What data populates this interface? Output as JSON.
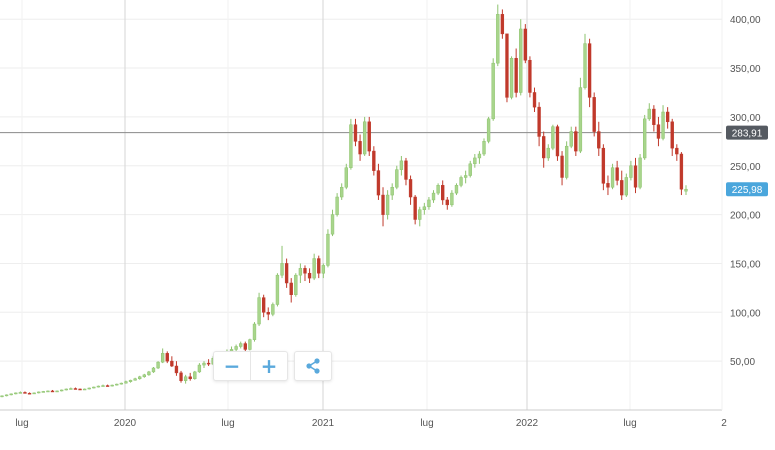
{
  "chart_data": {
    "type": "candlestick",
    "y_ticks": [
      "50,00",
      "100,00",
      "150,00",
      "200,00",
      "250,00",
      "300,00",
      "350,00",
      "400,00"
    ],
    "y_tick_values": [
      50,
      100,
      150,
      200,
      250,
      300,
      350,
      400
    ],
    "x_ticks": [
      "lug",
      "2020",
      "lug",
      "2021",
      "lug",
      "2022",
      "lug",
      "2"
    ],
    "ylim": [
      0,
      420
    ],
    "reference_line": {
      "value": 283.91,
      "label": "283,91",
      "color": "#8a8a8a"
    },
    "last_price": {
      "value": 225.98,
      "label": "225,98",
      "color": "#4aa6dc"
    },
    "colors": {
      "up": "#a8d58c",
      "up_border": "#8dc36e",
      "down": "#c0392b"
    },
    "grid": true,
    "candles": [
      [
        14,
        15,
        13,
        14.5
      ],
      [
        14.5,
        16,
        14,
        15.5
      ],
      [
        15.5,
        17,
        15,
        16.5
      ],
      [
        16.5,
        18,
        16,
        17.5
      ],
      [
        17.5,
        19,
        17,
        18
      ],
      [
        18,
        19,
        17,
        17.2
      ],
      [
        17.2,
        18,
        16.5,
        17
      ],
      [
        17,
        18,
        16.5,
        17.5
      ],
      [
        17.5,
        19,
        17,
        18.5
      ],
      [
        18.5,
        19.5,
        18,
        19
      ],
      [
        19,
        20,
        18.5,
        19.5
      ],
      [
        19.5,
        20.5,
        19,
        19
      ],
      [
        19,
        20,
        18.5,
        19.5
      ],
      [
        19.5,
        21,
        19,
        20.5
      ],
      [
        20.5,
        22,
        20,
        21.5
      ],
      [
        21.5,
        23,
        21,
        22
      ],
      [
        22,
        23,
        21,
        21.5
      ],
      [
        21.5,
        22,
        20.5,
        21
      ],
      [
        21,
        22,
        20.5,
        21.5
      ],
      [
        21.5,
        23,
        21,
        22.5
      ],
      [
        22.5,
        24,
        22,
        23.5
      ],
      [
        23.5,
        25,
        23,
        24.5
      ],
      [
        24.5,
        26,
        24,
        25
      ],
      [
        25,
        26,
        24,
        24.5
      ],
      [
        24.5,
        26,
        24,
        25.5
      ],
      [
        25.5,
        27,
        25,
        26.5
      ],
      [
        26.5,
        28,
        26,
        27.5
      ],
      [
        27.5,
        30,
        27,
        29
      ],
      [
        29,
        31,
        28,
        30.5
      ],
      [
        30.5,
        33,
        30,
        32
      ],
      [
        32,
        35,
        31,
        34
      ],
      [
        34,
        37,
        33,
        36
      ],
      [
        36,
        40,
        35,
        39
      ],
      [
        39,
        44,
        38,
        43
      ],
      [
        43,
        50,
        42,
        49
      ],
      [
        49,
        63,
        48,
        58
      ],
      [
        58,
        60,
        48,
        50
      ],
      [
        50,
        55,
        44,
        45
      ],
      [
        45,
        50,
        35,
        38
      ],
      [
        38,
        40,
        28,
        30
      ],
      [
        30,
        36,
        27,
        34
      ],
      [
        34,
        38,
        30,
        32
      ],
      [
        32,
        40,
        31,
        39
      ],
      [
        39,
        48,
        38,
        46
      ],
      [
        46,
        50,
        43,
        48
      ],
      [
        48,
        52,
        45,
        47
      ],
      [
        47,
        55,
        46,
        53
      ],
      [
        53,
        58,
        51,
        56
      ],
      [
        56,
        60,
        54,
        57
      ],
      [
        57,
        62,
        55,
        60
      ],
      [
        60,
        65,
        58,
        62
      ],
      [
        62,
        67,
        60,
        65
      ],
      [
        65,
        70,
        63,
        68
      ],
      [
        68,
        70,
        60,
        62
      ],
      [
        62,
        73,
        61,
        72
      ],
      [
        72,
        90,
        70,
        88
      ],
      [
        88,
        120,
        86,
        115
      ],
      [
        115,
        118,
        95,
        100
      ],
      [
        100,
        105,
        92,
        98
      ],
      [
        98,
        110,
        96,
        108
      ],
      [
        108,
        140,
        106,
        138
      ],
      [
        138,
        168,
        135,
        150
      ],
      [
        150,
        155,
        125,
        130
      ],
      [
        130,
        135,
        110,
        118
      ],
      [
        118,
        140,
        116,
        138
      ],
      [
        138,
        150,
        130,
        145
      ],
      [
        145,
        148,
        132,
        140
      ],
      [
        140,
        145,
        130,
        135
      ],
      [
        135,
        160,
        133,
        155
      ],
      [
        155,
        158,
        135,
        140
      ],
      [
        140,
        150,
        135,
        148
      ],
      [
        148,
        185,
        146,
        180
      ],
      [
        180,
        205,
        178,
        200
      ],
      [
        200,
        222,
        198,
        218
      ],
      [
        218,
        232,
        215,
        228
      ],
      [
        228,
        252,
        226,
        248
      ],
      [
        248,
        298,
        246,
        292
      ],
      [
        292,
        298,
        270,
        275
      ],
      [
        275,
        282,
        255,
        262
      ],
      [
        262,
        300,
        260,
        295
      ],
      [
        295,
        300,
        260,
        265
      ],
      [
        265,
        270,
        240,
        245
      ],
      [
        245,
        252,
        215,
        220
      ],
      [
        220,
        228,
        188,
        200
      ],
      [
        200,
        225,
        195,
        220
      ],
      [
        220,
        232,
        215,
        228
      ],
      [
        228,
        250,
        226,
        246
      ],
      [
        246,
        260,
        240,
        255
      ],
      [
        255,
        258,
        230,
        236
      ],
      [
        236,
        240,
        210,
        218
      ],
      [
        218,
        220,
        190,
        195
      ],
      [
        195,
        208,
        188,
        205
      ],
      [
        205,
        212,
        200,
        208
      ],
      [
        208,
        218,
        205,
        215
      ],
      [
        215,
        225,
        212,
        222
      ],
      [
        222,
        232,
        220,
        230
      ],
      [
        230,
        235,
        210,
        215
      ],
      [
        215,
        218,
        205,
        210
      ],
      [
        210,
        225,
        208,
        222
      ],
      [
        222,
        232,
        220,
        230
      ],
      [
        230,
        240,
        228,
        238
      ],
      [
        238,
        245,
        232,
        240
      ],
      [
        240,
        255,
        238,
        252
      ],
      [
        252,
        262,
        248,
        258
      ],
      [
        258,
        265,
        252,
        262
      ],
      [
        262,
        278,
        260,
        275
      ],
      [
        275,
        300,
        273,
        298
      ],
      [
        298,
        360,
        296,
        355
      ],
      [
        355,
        415,
        352,
        405
      ],
      [
        405,
        410,
        380,
        385
      ],
      [
        385,
        385,
        315,
        320
      ],
      [
        320,
        362,
        318,
        360
      ],
      [
        360,
        370,
        320,
        325
      ],
      [
        325,
        400,
        322,
        390
      ],
      [
        390,
        395,
        355,
        358
      ],
      [
        358,
        362,
        320,
        325
      ],
      [
        325,
        330,
        305,
        310
      ],
      [
        310,
        315,
        270,
        280
      ],
      [
        280,
        285,
        248,
        258
      ],
      [
        258,
        272,
        255,
        268
      ],
      [
        268,
        292,
        266,
        290
      ],
      [
        290,
        292,
        255,
        260
      ],
      [
        260,
        265,
        230,
        238
      ],
      [
        238,
        275,
        236,
        270
      ],
      [
        270,
        290,
        268,
        285
      ],
      [
        285,
        290,
        260,
        265
      ],
      [
        265,
        340,
        263,
        330
      ],
      [
        330,
        385,
        328,
        375
      ],
      [
        375,
        380,
        310,
        320
      ],
      [
        320,
        325,
        280,
        285
      ],
      [
        285,
        295,
        260,
        268
      ],
      [
        268,
        272,
        225,
        232
      ],
      [
        232,
        240,
        220,
        228
      ],
      [
        228,
        252,
        226,
        248
      ],
      [
        248,
        255,
        230,
        235
      ],
      [
        235,
        245,
        215,
        220
      ],
      [
        220,
        242,
        218,
        238
      ],
      [
        238,
        255,
        235,
        250
      ],
      [
        250,
        258,
        222,
        228
      ],
      [
        228,
        262,
        226,
        258
      ],
      [
        258,
        302,
        256,
        298
      ],
      [
        298,
        314,
        296,
        308
      ],
      [
        308,
        312,
        285,
        292
      ],
      [
        292,
        300,
        270,
        278
      ],
      [
        278,
        312,
        276,
        305
      ],
      [
        305,
        310,
        288,
        295
      ],
      [
        295,
        298,
        260,
        268
      ],
      [
        268,
        272,
        255,
        262
      ],
      [
        262,
        264,
        220,
        226
      ],
      [
        224,
        230,
        220,
        225.98
      ]
    ]
  },
  "toolbar": {
    "zoom_out_label": "−",
    "zoom_in_label": "+"
  }
}
